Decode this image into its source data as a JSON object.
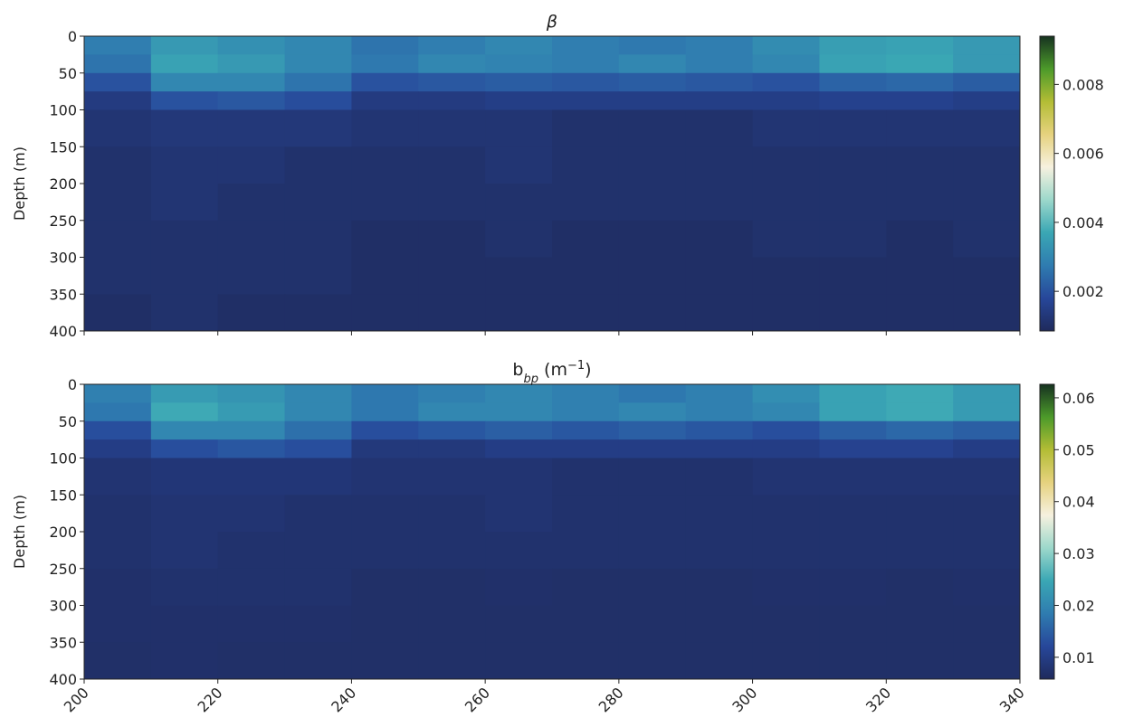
{
  "chart_data": [
    {
      "type": "heatmap",
      "title_parts": [
        {
          "text": "β",
          "style": "italic"
        }
      ],
      "ylabel": "Depth (m)",
      "xlim": [
        200,
        340
      ],
      "xticks": [
        200,
        220,
        240,
        260,
        280,
        300,
        320,
        340
      ],
      "show_xticklabels": false,
      "ylim": [
        400,
        0
      ],
      "yticks": [
        0,
        50,
        100,
        150,
        200,
        250,
        300,
        350,
        400
      ],
      "x_edges": [
        200,
        210,
        220,
        230,
        240,
        250,
        260,
        270,
        280,
        290,
        300,
        310,
        320,
        330,
        340
      ],
      "y_edges": [
        0,
        25,
        50,
        75,
        100,
        150,
        200,
        250,
        300,
        350,
        400
      ],
      "values": [
        [
          0.0028,
          0.0034,
          0.0032,
          0.003,
          0.0026,
          0.0028,
          0.003,
          0.0028,
          0.0027,
          0.0028,
          0.0031,
          0.0035,
          0.0036,
          0.0034
        ],
        [
          0.0026,
          0.0036,
          0.0034,
          0.003,
          0.0027,
          0.003,
          0.0029,
          0.0028,
          0.003,
          0.0028,
          0.003,
          0.0036,
          0.0037,
          0.0034
        ],
        [
          0.002,
          0.003,
          0.003,
          0.0026,
          0.002,
          0.0021,
          0.0022,
          0.0021,
          0.0022,
          0.0021,
          0.002,
          0.0023,
          0.0024,
          0.0022
        ],
        [
          0.0014,
          0.002,
          0.0021,
          0.0019,
          0.0014,
          0.0014,
          0.0015,
          0.0015,
          0.0015,
          0.0015,
          0.0015,
          0.0016,
          0.0016,
          0.0015
        ],
        [
          0.0012,
          0.0013,
          0.0013,
          0.0013,
          0.0012,
          0.0012,
          0.0012,
          0.0011,
          0.0011,
          0.0011,
          0.0012,
          0.0012,
          0.0012,
          0.0012
        ],
        [
          0.0011,
          0.0012,
          0.0012,
          0.0011,
          0.0011,
          0.0011,
          0.0012,
          0.0011,
          0.0011,
          0.0011,
          0.0011,
          0.0011,
          0.0011,
          0.0011
        ],
        [
          0.0011,
          0.0012,
          0.0011,
          0.0011,
          0.0011,
          0.0011,
          0.0011,
          0.0011,
          0.0011,
          0.0011,
          0.0011,
          0.0011,
          0.0011,
          0.0011
        ],
        [
          0.0011,
          0.0011,
          0.0011,
          0.0011,
          0.001,
          0.001,
          0.0011,
          0.001,
          0.001,
          0.001,
          0.0011,
          0.0011,
          0.001,
          0.0011
        ],
        [
          0.0011,
          0.0011,
          0.0011,
          0.0011,
          0.001,
          0.001,
          0.001,
          0.001,
          0.001,
          0.001,
          0.001,
          0.001,
          0.001,
          0.001
        ],
        [
          0.001,
          0.0011,
          0.001,
          0.001,
          0.001,
          0.001,
          0.001,
          0.001,
          0.001,
          0.001,
          0.001,
          0.001,
          0.001,
          0.001
        ]
      ],
      "clim": [
        0.00085,
        0.0094
      ],
      "cticks": [
        0.002,
        0.004,
        0.006,
        0.008
      ],
      "colormap": [
        "#1f2a5c",
        "#27479a",
        "#2f7cb0",
        "#3aa7b4",
        "#9cd8cb",
        "#f6f1df",
        "#e6d27f",
        "#b3bd35",
        "#4c9a2a",
        "#163220"
      ]
    },
    {
      "type": "heatmap",
      "title_parts": [
        {
          "text": "b"
        },
        {
          "text": "bp",
          "script": "sub",
          "style": "italic"
        },
        {
          "text": " (m"
        },
        {
          "text": "−1",
          "script": "super"
        },
        {
          "text": ")"
        }
      ],
      "ylabel": "Depth (m)",
      "xlim": [
        200,
        340
      ],
      "xticks": [
        200,
        220,
        240,
        260,
        280,
        300,
        320,
        340
      ],
      "show_xticklabels": true,
      "ylim": [
        400,
        0
      ],
      "yticks": [
        0,
        50,
        100,
        150,
        200,
        250,
        300,
        350,
        400
      ],
      "x_edges": [
        200,
        210,
        220,
        230,
        240,
        250,
        260,
        270,
        280,
        290,
        300,
        310,
        320,
        330,
        340
      ],
      "y_edges": [
        0,
        25,
        50,
        75,
        100,
        150,
        200,
        250,
        300,
        350,
        400
      ],
      "values": [
        [
          0.019,
          0.023,
          0.022,
          0.02,
          0.018,
          0.019,
          0.02,
          0.019,
          0.018,
          0.019,
          0.021,
          0.024,
          0.025,
          0.023
        ],
        [
          0.018,
          0.025,
          0.023,
          0.02,
          0.018,
          0.02,
          0.02,
          0.019,
          0.02,
          0.019,
          0.02,
          0.024,
          0.025,
          0.023
        ],
        [
          0.013,
          0.02,
          0.02,
          0.017,
          0.013,
          0.014,
          0.015,
          0.014,
          0.015,
          0.014,
          0.013,
          0.015,
          0.016,
          0.015
        ],
        [
          0.01,
          0.013,
          0.014,
          0.013,
          0.009,
          0.009,
          0.01,
          0.01,
          0.01,
          0.01,
          0.01,
          0.011,
          0.011,
          0.01
        ],
        [
          0.008,
          0.0085,
          0.0085,
          0.0085,
          0.008,
          0.008,
          0.008,
          0.0075,
          0.0075,
          0.0075,
          0.008,
          0.008,
          0.008,
          0.008
        ],
        [
          0.0075,
          0.008,
          0.008,
          0.0075,
          0.0075,
          0.0075,
          0.008,
          0.0075,
          0.0075,
          0.0075,
          0.0075,
          0.0075,
          0.0075,
          0.0075
        ],
        [
          0.0075,
          0.008,
          0.0075,
          0.0075,
          0.0075,
          0.0075,
          0.0075,
          0.0075,
          0.0075,
          0.0075,
          0.0075,
          0.0075,
          0.0075,
          0.0075
        ],
        [
          0.0072,
          0.0075,
          0.0075,
          0.0075,
          0.007,
          0.007,
          0.0072,
          0.007,
          0.007,
          0.007,
          0.0072,
          0.0072,
          0.007,
          0.0072
        ],
        [
          0.0072,
          0.0072,
          0.0072,
          0.0072,
          0.007,
          0.007,
          0.007,
          0.007,
          0.007,
          0.007,
          0.007,
          0.007,
          0.007,
          0.007
        ],
        [
          0.007,
          0.0072,
          0.007,
          0.007,
          0.007,
          0.007,
          0.007,
          0.007,
          0.007,
          0.007,
          0.007,
          0.007,
          0.007,
          0.007
        ]
      ],
      "clim": [
        0.0058,
        0.0626
      ],
      "cticks": [
        0.01,
        0.02,
        0.03,
        0.04,
        0.05,
        0.06
      ],
      "colormap": [
        "#1f2a5c",
        "#27479a",
        "#2f7cb0",
        "#3aa7b4",
        "#9cd8cb",
        "#f6f1df",
        "#e6d27f",
        "#b3bd35",
        "#4c9a2a",
        "#163220"
      ]
    }
  ]
}
